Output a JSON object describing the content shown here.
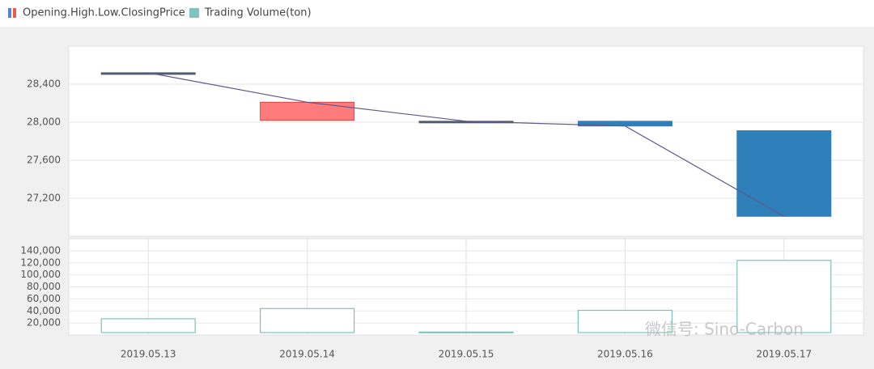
{
  "chart_data": {
    "type": "candlestick",
    "legend": [
      "Opening.High.Low.ClosingPrice",
      "Trading Volume(ton)"
    ],
    "categories": [
      "2019.05.13",
      "2019.05.14",
      "2019.05.15",
      "2019.05.16",
      "2019.05.17"
    ],
    "open": [
      28520,
      28020,
      28010,
      28010,
      27910
    ],
    "high": [
      28520,
      28210,
      28010,
      28010,
      27910
    ],
    "low": [
      28520,
      28020,
      28010,
      27960,
      27010
    ],
    "close": [
      28520,
      28210,
      28010,
      27960,
      27010
    ],
    "up_color": "#ff7b7b",
    "down_color": "#2f7fbb",
    "flat_color": "#4f5d73",
    "line_color": "#5c5a88",
    "ylim": [
      26800,
      28800
    ],
    "yticks": [
      {
        "value": 27200,
        "label": "27,200"
      },
      {
        "value": 27600,
        "label": "27,600"
      },
      {
        "value": 28000,
        "label": "28,000"
      },
      {
        "value": 28400,
        "label": "28,400"
      }
    ],
    "volume": [
      27000,
      44000,
      5000,
      41000,
      124000
    ],
    "volume_color": "#7cc3bd",
    "y2lim": [
      0,
      160000
    ],
    "y2ticks": [
      {
        "value": 20000,
        "label": "20,000"
      },
      {
        "value": 40000,
        "label": "40,000"
      },
      {
        "value": 60000,
        "label": "60,000"
      },
      {
        "value": 80000,
        "label": "80,000"
      },
      {
        "value": 100000,
        "label": "100,000"
      },
      {
        "value": 120000,
        "label": "120,000"
      },
      {
        "value": 140000,
        "label": "140,000"
      }
    ],
    "grid": true,
    "watermark": "微信号: Sino-Carbon"
  }
}
